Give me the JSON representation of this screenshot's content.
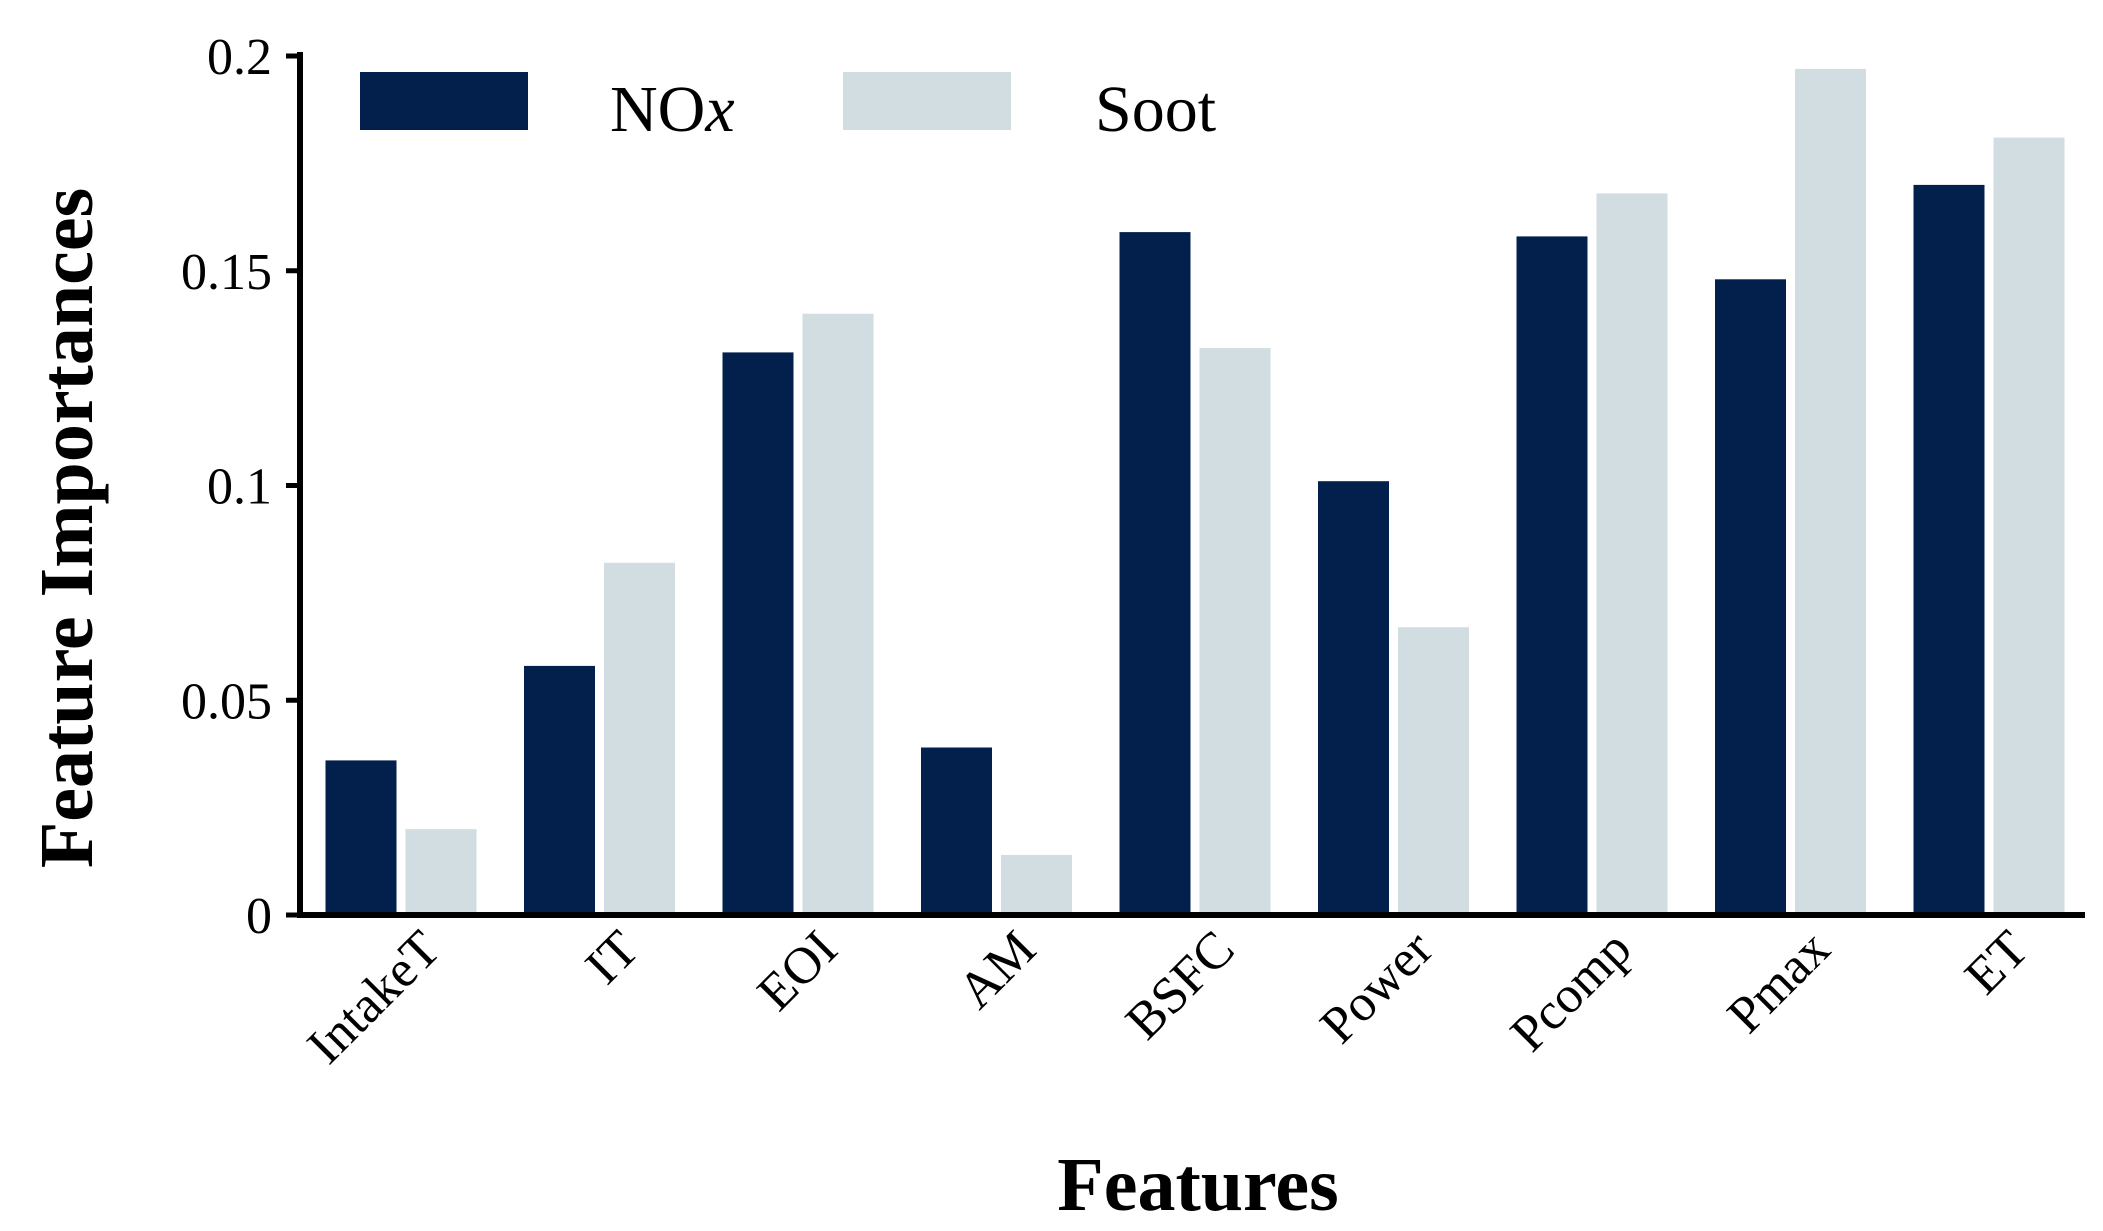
{
  "chart_data": {
    "type": "bar",
    "title": "",
    "xlabel": "Features",
    "ylabel": "Feature Importances",
    "ylim": [
      0,
      0.2
    ],
    "yticks": [
      0,
      0.05,
      0.1,
      0.15,
      0.2
    ],
    "ytick_labels": [
      "0",
      "0.05",
      "0.1",
      "0.15",
      "0.2"
    ],
    "categories": [
      "IntakeT",
      "IT",
      "EOI",
      "AM",
      "BSFC",
      "Power",
      "Pcomp",
      "Pmax",
      "ET"
    ],
    "series": [
      {
        "name": "NOx",
        "color": "#03204d",
        "values": [
          0.036,
          0.058,
          0.131,
          0.039,
          0.159,
          0.101,
          0.158,
          0.148,
          0.17
        ]
      },
      {
        "name": "Soot",
        "color": "#d2dde2",
        "values": [
          0.02,
          0.082,
          0.14,
          0.014,
          0.132,
          0.067,
          0.168,
          0.197,
          0.181
        ]
      }
    ],
    "legend": {
      "placement": "top-left",
      "items": [
        {
          "name_main": "NO",
          "name_italic": "x"
        },
        {
          "name_main": "Soot",
          "name_italic": ""
        }
      ]
    },
    "grid": false
  }
}
